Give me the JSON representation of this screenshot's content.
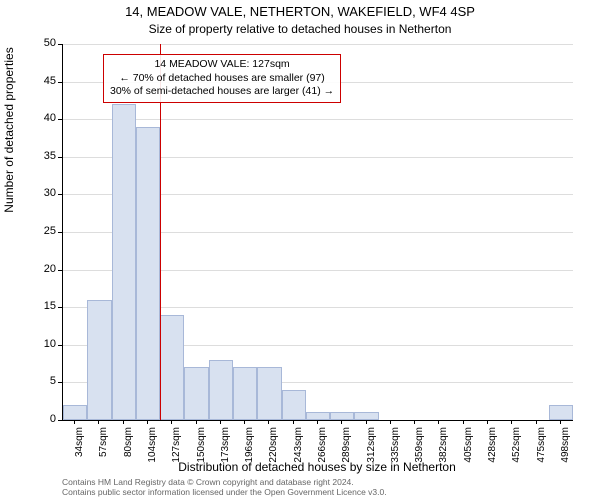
{
  "title_line1": "14, MEADOW VALE, NETHERTON, WAKEFIELD, WF4 4SP",
  "title_line2": "Size of property relative to detached houses in Netherton",
  "ylabel": "Number of detached properties",
  "xlabel": "Distribution of detached houses by size in Netherton",
  "chart": {
    "type": "histogram",
    "y": {
      "min": 0,
      "max": 50,
      "step": 5,
      "ticks": [
        0,
        5,
        10,
        15,
        20,
        25,
        30,
        35,
        40,
        45,
        50
      ]
    },
    "x": {
      "tick_labels": [
        "34sqm",
        "57sqm",
        "80sqm",
        "104sqm",
        "127sqm",
        "150sqm",
        "173sqm",
        "196sqm",
        "220sqm",
        "243sqm",
        "266sqm",
        "289sqm",
        "312sqm",
        "335sqm",
        "359sqm",
        "382sqm",
        "405sqm",
        "428sqm",
        "452sqm",
        "475sqm",
        "498sqm"
      ]
    },
    "bars": {
      "values": [
        2,
        16,
        42,
        39,
        14,
        7,
        8,
        7,
        7,
        4,
        1,
        1,
        1,
        0,
        0,
        0,
        0,
        0,
        0,
        0,
        2
      ],
      "fill_color": "#d8e1f0",
      "border_color": "#a8b8d8"
    },
    "marker_line": {
      "x_index_between": 4,
      "color": "#cc0000"
    },
    "annotation": {
      "line1": "14 MEADOW VALE: 127sqm",
      "line2": "← 70% of detached houses are smaller (97)",
      "line3": "30% of semi-detached houses are larger (41) →",
      "border_color": "#cc0000"
    },
    "grid_color": "#dddddd",
    "background_color": "#ffffff",
    "axis_color": "#000000",
    "title_fontsize": 13,
    "subtitle_fontsize": 12,
    "label_fontsize": 12,
    "tick_fontsize": 11,
    "xtick_fontsize": 10
  },
  "footer_line1": "Contains HM Land Registry data © Crown copyright and database right 2024.",
  "footer_line2": "Contains public sector information licensed under the Open Government Licence v3.0."
}
